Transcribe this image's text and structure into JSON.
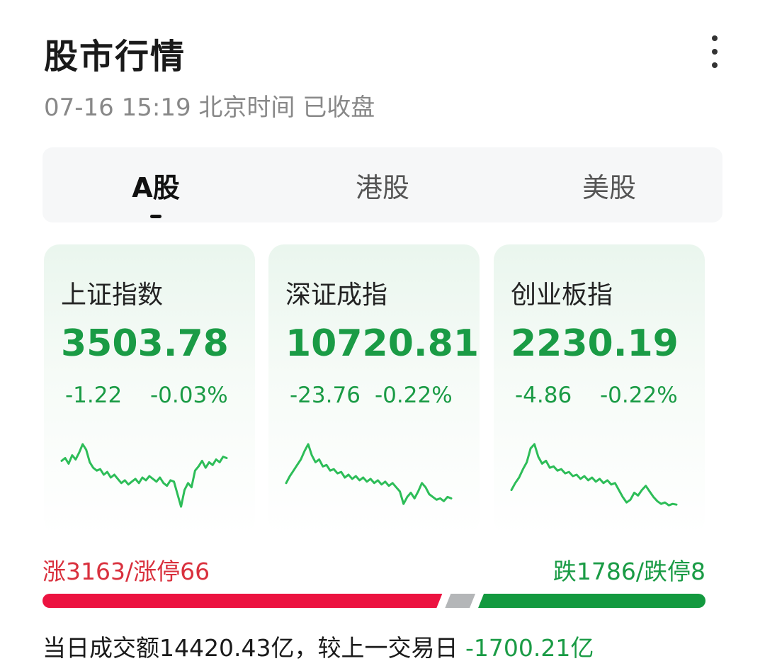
{
  "header": {
    "title": "股市行情",
    "subtitle": "07-16 15:19 北京时间 已收盘",
    "menu_icon": "more-vertical-icon"
  },
  "tabs": [
    {
      "label": "A股",
      "active": true
    },
    {
      "label": "港股",
      "active": false
    },
    {
      "label": "美股",
      "active": false
    }
  ],
  "indices": [
    {
      "name": "上证指数",
      "price": "3503.78",
      "change": "-1.22",
      "percent": "-0.03%",
      "trend": [
        0.72,
        0.76,
        0.68,
        0.8,
        0.74,
        0.84,
        0.96,
        0.88,
        0.7,
        0.62,
        0.58,
        0.6,
        0.52,
        0.56,
        0.48,
        0.52,
        0.46,
        0.4,
        0.44,
        0.38,
        0.42,
        0.46,
        0.4,
        0.48,
        0.44,
        0.5,
        0.46,
        0.42,
        0.48,
        0.4,
        0.36,
        0.44,
        0.42,
        0.24,
        0.06,
        0.3,
        0.4,
        0.34,
        0.58,
        0.64,
        0.72,
        0.62,
        0.7,
        0.66,
        0.74,
        0.7,
        0.78,
        0.76
      ]
    },
    {
      "name": "深证成指",
      "price": "10720.81",
      "change": "-23.76",
      "percent": "-0.22%",
      "trend": [
        0.4,
        0.5,
        0.58,
        0.66,
        0.74,
        0.86,
        0.96,
        0.8,
        0.7,
        0.74,
        0.64,
        0.66,
        0.58,
        0.6,
        0.54,
        0.56,
        0.48,
        0.52,
        0.46,
        0.5,
        0.44,
        0.48,
        0.42,
        0.46,
        0.4,
        0.44,
        0.38,
        0.42,
        0.36,
        0.4,
        0.34,
        0.28,
        0.1,
        0.2,
        0.26,
        0.18,
        0.28,
        0.4,
        0.34,
        0.24,
        0.2,
        0.16,
        0.18,
        0.14,
        0.2,
        0.18
      ]
    },
    {
      "name": "创业板指",
      "price": "2230.19",
      "change": "-4.86",
      "percent": "-0.22%",
      "trend": [
        0.3,
        0.4,
        0.48,
        0.6,
        0.7,
        0.9,
        0.96,
        0.78,
        0.68,
        0.72,
        0.62,
        0.64,
        0.58,
        0.6,
        0.54,
        0.56,
        0.5,
        0.52,
        0.46,
        0.5,
        0.44,
        0.48,
        0.42,
        0.46,
        0.4,
        0.44,
        0.38,
        0.4,
        0.3,
        0.2,
        0.12,
        0.16,
        0.26,
        0.22,
        0.3,
        0.36,
        0.28,
        0.2,
        0.14,
        0.1,
        0.12,
        0.08,
        0.1,
        0.09
      ]
    }
  ],
  "breadth": {
    "up_text": "涨3163/涨停66",
    "down_text": "跌1786/跌停8",
    "up_count": 3163,
    "flat_count": 260,
    "down_count": 1786,
    "up_color": "#ec1340",
    "flat_color": "#b4b6b8",
    "down_color": "#13993f"
  },
  "volume": {
    "text": "当日成交额14420.43亿，较上一交易日 ",
    "diff": "-1700.21亿"
  },
  "colors": {
    "up": "#d9303d",
    "down": "#1a9b45"
  }
}
